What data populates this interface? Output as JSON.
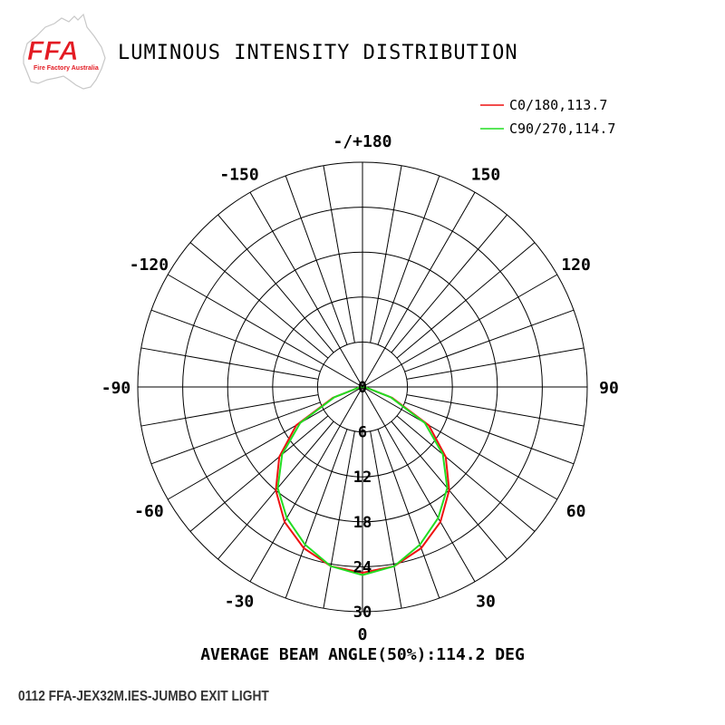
{
  "logo": {
    "text": "FFA",
    "subtext": "Fire Factory Australia"
  },
  "caption": "0112 FFA-JEX32M.IES-JUMBO EXIT LIGHT",
  "colors": {
    "c0": "#ee1111",
    "c90": "#22dd22",
    "grid": "#000000",
    "logo_red": "#e31b23"
  },
  "chart_data": {
    "type": "polar",
    "title": "LUMINOUS INTENSITY DISTRIBUTION",
    "footer": "AVERAGE BEAM ANGLE(50%):114.2 DEG",
    "radial_ticks": [
      "0",
      "6",
      "12",
      "18",
      "24",
      "30"
    ],
    "radial_max": 30,
    "angle_labels": [
      {
        "angle": 180,
        "label": "-/+180"
      },
      {
        "angle": -150,
        "label": "-150"
      },
      {
        "angle": 150,
        "label": "150"
      },
      {
        "angle": -120,
        "label": "-120"
      },
      {
        "angle": 120,
        "label": "120"
      },
      {
        "angle": -90,
        "label": "-90"
      },
      {
        "angle": 90,
        "label": "90"
      },
      {
        "angle": -60,
        "label": "-60"
      },
      {
        "angle": 60,
        "label": "60"
      },
      {
        "angle": -30,
        "label": "-30"
      },
      {
        "angle": 30,
        "label": "30"
      },
      {
        "angle": 0,
        "label": "0"
      }
    ],
    "spoke_step_deg": 10,
    "legend_position": "top-right",
    "series": [
      {
        "name": "C0/180,113.7",
        "color": "#ee1111",
        "angles": [
          -90,
          -80,
          -70,
          -60,
          -50,
          -40,
          -30,
          -20,
          -10,
          0,
          10,
          20,
          30,
          40,
          50,
          60,
          70,
          80,
          90
        ],
        "values": [
          0,
          0.5,
          4.2,
          10.2,
          14.5,
          18.0,
          20.8,
          22.9,
          24.3,
          24.8,
          24.3,
          22.9,
          20.8,
          18.0,
          14.5,
          10.2,
          4.2,
          0.5,
          0
        ]
      },
      {
        "name": "C90/270,114.7",
        "color": "#22dd22",
        "angles": [
          -90,
          -80,
          -70,
          -60,
          -50,
          -40,
          -30,
          -20,
          -10,
          0,
          10,
          20,
          30,
          40,
          50,
          60,
          70,
          80,
          90
        ],
        "values": [
          0,
          0.5,
          4.0,
          9.6,
          14.0,
          17.6,
          20.2,
          22.4,
          24.3,
          25.1,
          24.3,
          22.4,
          20.2,
          17.6,
          14.0,
          9.6,
          4.0,
          0.5,
          0
        ]
      }
    ]
  }
}
